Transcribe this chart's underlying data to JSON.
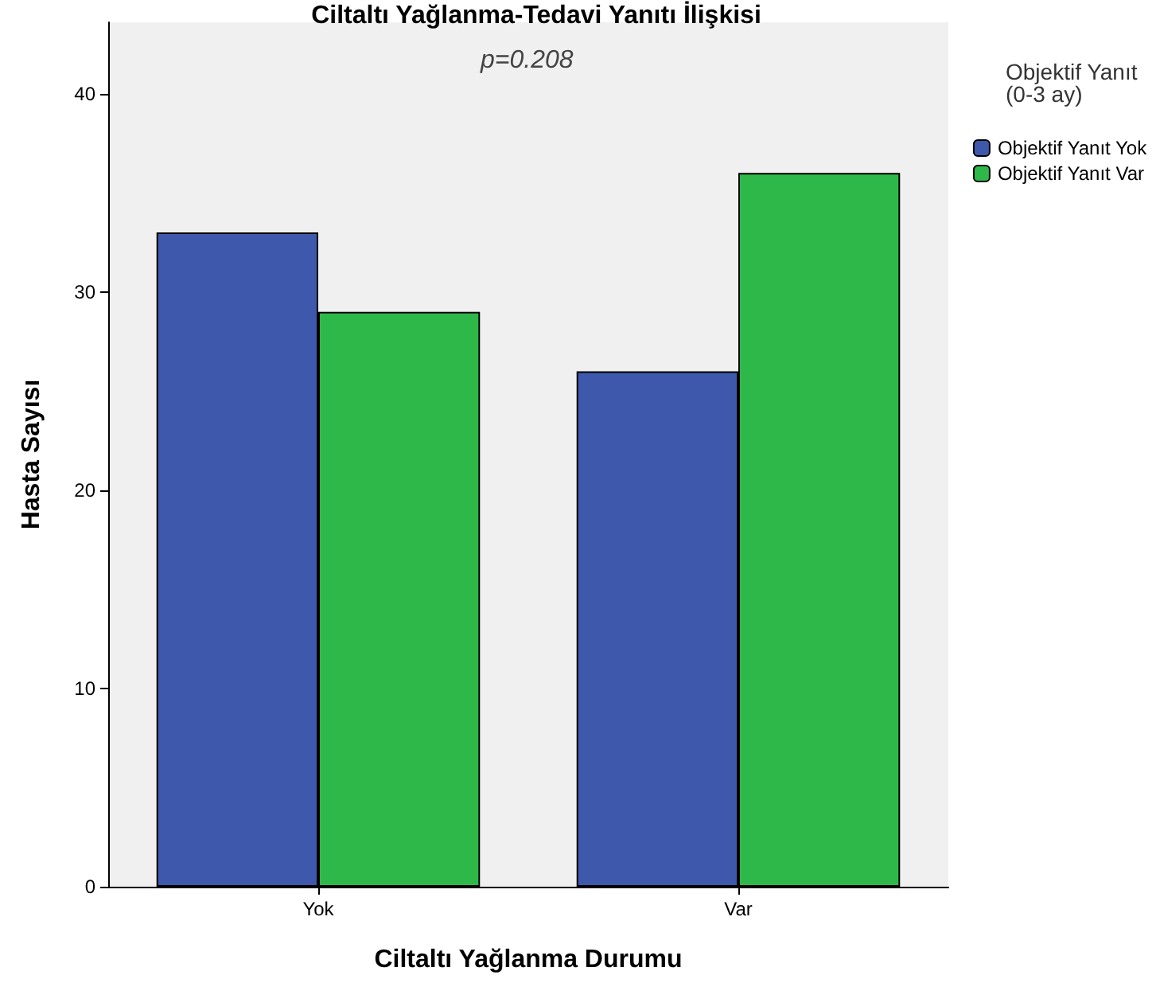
{
  "chart_data": {
    "type": "bar",
    "title": "Ciltaltı Yağlanma-Tedavi Yanıtı İlişkisi",
    "xlabel": "Ciltaltı Yağlanma Durumu",
    "ylabel": "Hasta Sayısı",
    "legend_title": "Objektif Yanıt\n(0-3 ay)",
    "annotations": [
      "p=0.208"
    ],
    "categories": [
      "Yok",
      "Var"
    ],
    "series": [
      {
        "name": "Objektif Yanıt Yok",
        "color": "#3e58ac",
        "values": [
          33,
          26
        ]
      },
      {
        "name": "Objektif Yanıt Var",
        "color": "#2fb84a",
        "values": [
          29,
          36
        ]
      }
    ],
    "ylim": [
      0,
      43.6
    ],
    "yticks": [
      0,
      10,
      20,
      30,
      40
    ],
    "grid": false,
    "legend": "top right"
  }
}
